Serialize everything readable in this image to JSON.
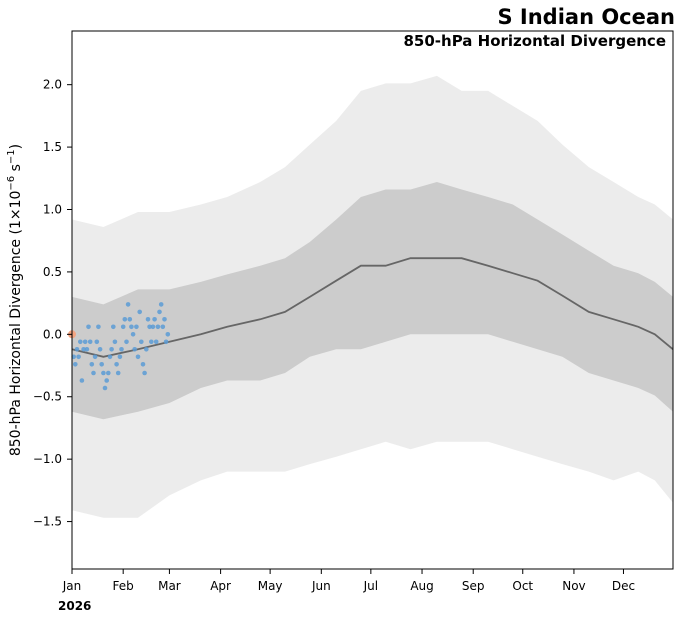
{
  "chart_data": {
    "type": "line",
    "title": "S Indian Ocean",
    "subtitle": "850-hPa Horizontal Divergence",
    "ylabel_main": "850-hPa Horizontal Divergence (1×10",
    "ylabel_exp1": "−6",
    "ylabel_mid": " s",
    "ylabel_exp2": "−1",
    "ylabel_end": ")",
    "year_label": "2026",
    "x_axis_type": "date",
    "xlim": [
      "2026-01-01",
      "2026-12-31"
    ],
    "ylim": [
      -1.88,
      2.43
    ],
    "month_labels": [
      "Jan",
      "Feb",
      "Mar",
      "Apr",
      "May",
      "Jun",
      "Jul",
      "Aug",
      "Sep",
      "Oct",
      "Nov",
      "Dec"
    ],
    "y_ticks": [
      -1.5,
      -1.0,
      -0.5,
      0.0,
      0.5,
      1.0,
      1.5,
      2.0
    ],
    "y_tick_labels": [
      "−1.5",
      "−1.0",
      "−0.5",
      "0.0",
      "0.5",
      "1.0",
      "1.5",
      "2.0"
    ],
    "climatology": {
      "dates": [
        "2026-01-01",
        "2026-01-20",
        "2026-02-10",
        "2026-03-01",
        "2026-03-20",
        "2026-04-05",
        "2026-04-25",
        "2026-05-10",
        "2026-05-25",
        "2026-06-10",
        "2026-06-25",
        "2026-07-10",
        "2026-07-25",
        "2026-08-10",
        "2026-08-25",
        "2026-09-10",
        "2026-09-25",
        "2026-10-10",
        "2026-10-25",
        "2026-11-10",
        "2026-11-25",
        "2026-12-10",
        "2026-12-20",
        "2026-12-31"
      ],
      "mean": [
        -0.12,
        -0.18,
        -0.12,
        -0.06,
        0.0,
        0.06,
        0.12,
        0.18,
        0.3,
        0.43,
        0.55,
        0.55,
        0.61,
        0.61,
        0.61,
        0.55,
        0.49,
        0.43,
        0.31,
        0.18,
        0.12,
        0.06,
        0.0,
        -0.12
      ],
      "inner_upper": [
        0.3,
        0.24,
        0.36,
        0.36,
        0.42,
        0.48,
        0.55,
        0.61,
        0.74,
        0.92,
        1.1,
        1.16,
        1.16,
        1.22,
        1.16,
        1.1,
        1.04,
        0.92,
        0.8,
        0.67,
        0.55,
        0.49,
        0.42,
        0.3
      ],
      "inner_lower": [
        -0.62,
        -0.68,
        -0.62,
        -0.55,
        -0.43,
        -0.37,
        -0.37,
        -0.31,
        -0.18,
        -0.12,
        -0.12,
        -0.06,
        0.0,
        0.0,
        0.0,
        0.0,
        -0.06,
        -0.12,
        -0.18,
        -0.31,
        -0.37,
        -0.43,
        -0.49,
        -0.62
      ],
      "outer_upper": [
        0.92,
        0.86,
        0.98,
        0.98,
        1.04,
        1.1,
        1.22,
        1.34,
        1.52,
        1.71,
        1.95,
        2.01,
        2.01,
        2.07,
        1.95,
        1.95,
        1.83,
        1.71,
        1.52,
        1.34,
        1.22,
        1.1,
        1.04,
        0.92
      ],
      "outer_lower": [
        -1.41,
        -1.47,
        -1.47,
        -1.29,
        -1.17,
        -1.1,
        -1.1,
        -1.1,
        -1.04,
        -0.98,
        -0.92,
        -0.86,
        -0.92,
        -0.86,
        -0.86,
        -0.86,
        -0.92,
        -0.98,
        -1.04,
        -1.1,
        -1.17,
        -1.1,
        -1.17,
        -1.35
      ]
    },
    "observations": {
      "dates": [
        "2026-01-01",
        "2026-01-02",
        "2026-01-03",
        "2026-01-04",
        "2026-01-05",
        "2026-01-06",
        "2026-01-07",
        "2026-01-08",
        "2026-01-09",
        "2026-01-10",
        "2026-01-11",
        "2026-01-12",
        "2026-01-13",
        "2026-01-14",
        "2026-01-15",
        "2026-01-16",
        "2026-01-17",
        "2026-01-18",
        "2026-01-19",
        "2026-01-20",
        "2026-01-21",
        "2026-01-22",
        "2026-01-23",
        "2026-01-24",
        "2026-01-25",
        "2026-01-26",
        "2026-01-27",
        "2026-01-28",
        "2026-01-29",
        "2026-01-30",
        "2026-01-31",
        "2026-02-01",
        "2026-02-02",
        "2026-02-03",
        "2026-02-04",
        "2026-02-05",
        "2026-02-06",
        "2026-02-07",
        "2026-02-08",
        "2026-02-09",
        "2026-02-10",
        "2026-02-11",
        "2026-02-12",
        "2026-02-13",
        "2026-02-14",
        "2026-02-15",
        "2026-02-16",
        "2026-02-17",
        "2026-02-18",
        "2026-02-19",
        "2026-02-20",
        "2026-02-21",
        "2026-02-22",
        "2026-02-23",
        "2026-02-24",
        "2026-02-25",
        "2026-02-26",
        "2026-02-27",
        "2026-02-28"
      ],
      "values": [
        0.0,
        -0.18,
        -0.24,
        -0.12,
        -0.18,
        -0.06,
        -0.37,
        -0.12,
        -0.06,
        -0.12,
        0.06,
        -0.06,
        -0.24,
        -0.31,
        -0.18,
        -0.06,
        0.06,
        -0.12,
        -0.24,
        -0.31,
        -0.43,
        -0.37,
        -0.31,
        -0.18,
        -0.12,
        0.06,
        -0.06,
        -0.24,
        -0.31,
        -0.18,
        -0.12,
        0.06,
        0.12,
        -0.06,
        0.24,
        0.12,
        0.06,
        0.0,
        -0.12,
        0.06,
        -0.18,
        0.18,
        -0.06,
        -0.24,
        -0.31,
        -0.12,
        0.12,
        0.06,
        -0.06,
        0.06,
        0.12,
        -0.06,
        0.06,
        0.18,
        0.24,
        0.06,
        0.12,
        -0.06,
        0.0
      ],
      "color": "#5b9bd5"
    },
    "latest_marker": {
      "date": "2026-01-01",
      "value": 0.0,
      "color": "#f4a582"
    },
    "colors": {
      "outer_band": "#ececec",
      "inner_band": "#cccccc",
      "mean_line": "#666666"
    },
    "grid": false
  }
}
